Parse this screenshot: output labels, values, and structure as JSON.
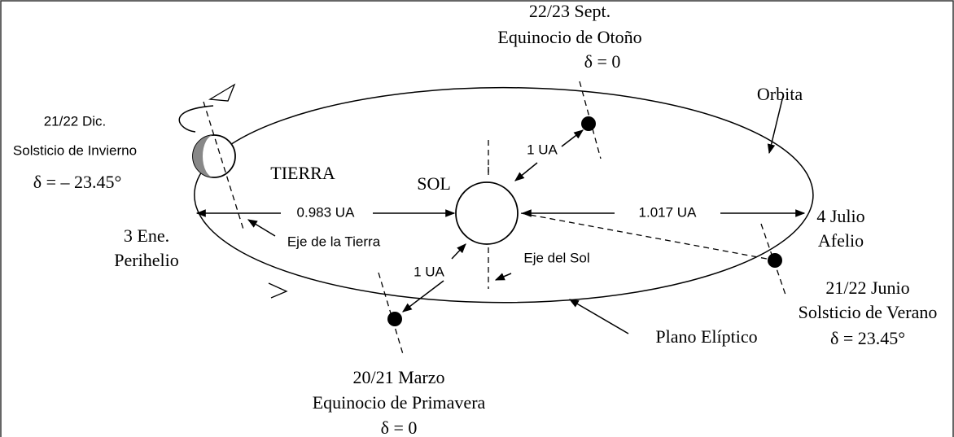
{
  "labels": {
    "september": [
      "22/23 Sept.",
      "Equinocio de Otoño",
      "δ = 0"
    ],
    "orbit": "Orbita",
    "december": [
      "21/22 Dic.",
      "Solsticio de Invierno",
      "δ = – 23.45°"
    ],
    "earth": "TIERRA",
    "sun": "SOL",
    "distance_top": "1 UA",
    "perihelion_distance": "0.983 UA",
    "aphelion_distance": "1.017 UA",
    "july": [
      "4 Julio",
      "Afelio"
    ],
    "january": [
      "3 Ene.",
      "Perihelio"
    ],
    "earth_axis": "Eje de la Tierra",
    "sun_axis": "Eje del Sol",
    "distance_bottom": "1 UA",
    "june": [
      "21/22 Junio",
      "Solsticio de Verano",
      "δ = 23.45°"
    ],
    "plane": "Plano Elíptico",
    "march": [
      "20/21 Marzo",
      "Equinocio de Primavera",
      "δ = 0"
    ]
  }
}
